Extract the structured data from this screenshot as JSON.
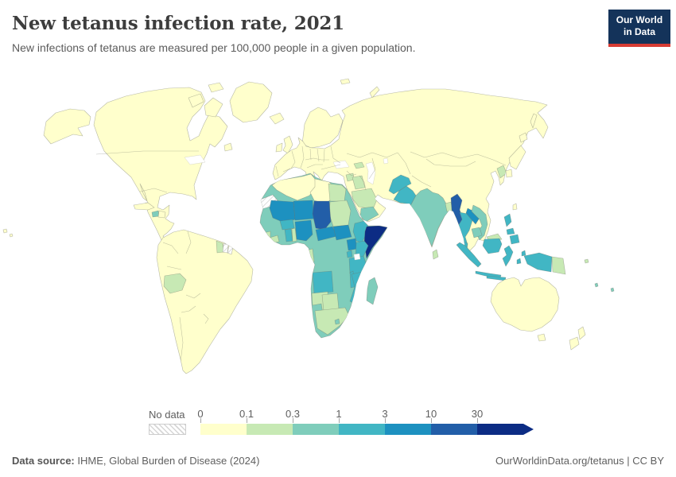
{
  "header": {
    "title": "New tetanus infection rate, 2021",
    "subtitle": "New infections of tetanus are measured per 100,000 people in a given population.",
    "logo_line1": "Our World",
    "logo_line2": "in Data"
  },
  "colors": {
    "logo_navy": "#14335A",
    "logo_red": "#D73C34",
    "ocean": "#ffffff",
    "country_border": "#6f7468"
  },
  "legend": {
    "no_data_label": "No data",
    "ticks": [
      "0",
      "0.1",
      "0.3",
      "1",
      "3",
      "10",
      "30"
    ],
    "bins": [
      {
        "range": "0-0.1",
        "color": "#ffffcc"
      },
      {
        "range": "0.1-0.3",
        "color": "#c7e9b4"
      },
      {
        "range": "0.3-1",
        "color": "#7fcdbb"
      },
      {
        "range": "1-3",
        "color": "#41b6c4"
      },
      {
        "range": "3-10",
        "color": "#1d91c0"
      },
      {
        "range": "10-30",
        "color": "#225ea8"
      },
      {
        "range": "30+",
        "color": "#0c2c84"
      }
    ]
  },
  "map": {
    "type": "choropleth",
    "metric": "new tetanus infections per 100,000 people",
    "year": "2021",
    "countries": {
      "north-america": 0,
      "alaska": 0,
      "greenland": 0,
      "arctic-island": 0,
      "newfoundland": 0,
      "cuba": 0,
      "haiti": 2,
      "dominican-republic": 0,
      "hawaii": 0,
      "south-america": 0,
      "bolivia": 1,
      "guyana": 1,
      "suriname": "nodata",
      "french-guiana": "nodata",
      "iceland": 0,
      "united-kingdom": 0,
      "ireland": 0,
      "scandinavia": 0,
      "svalbard": 0,
      "novaya-zemlya": 0,
      "eurasia": 0,
      "sicily": 0,
      "sardinia": 0,
      "crete": 0,
      "georgia": 1,
      "syria": 1,
      "iraq": 1,
      "saudi-arabia": 1,
      "yemen": 2,
      "afghanistan": 3,
      "pakistan": 3,
      "india": 2,
      "bangladesh": 1,
      "sri-lanka": 1,
      "myanmar": 5,
      "thailand": 3,
      "laos": 4,
      "vietnam": 2,
      "cambodia": 2,
      "malaysia": 3,
      "east-malaysia": 1,
      "north-korea": 1,
      "japan": 0,
      "taiwan": 0,
      "sakhalin": 0,
      "philippines": 3,
      "indonesia": 3,
      "timor-leste": 1,
      "papua-new-guinea": 1,
      "solomon-islands": 1,
      "vanuatu": 2,
      "fiji": 2,
      "australia": 0,
      "tasmania": 0,
      "new-zealand": 0,
      "africa": 2,
      "algeria": 0,
      "libya": 0,
      "western-sahara": "nodata",
      "egypt": 1,
      "sudan": 1,
      "mali": 4,
      "niger": 4,
      "chad": 5,
      "nigeria": 4,
      "burkina-faso": 3,
      "ghana": 3,
      "togo": 1,
      "sierra-leone": 1,
      "liberia": 1,
      "central-african-republic": 4,
      "south-sudan": 4,
      "ethiopia": 3,
      "somalia": 6,
      "uganda": 4,
      "kenya": 3,
      "rwanda": 3,
      "tanzania": 3,
      "angola": 3,
      "malawi": 3,
      "mozambique": 3,
      "gabon": 1,
      "namibia": 1,
      "botswana": 1,
      "south-africa": 1,
      "lesotho": 2,
      "madagascar": 2
    }
  },
  "footer": {
    "source_prefix": "Data source:",
    "source_text": " IHME, Global Burden of Disease (2024)",
    "link_text": "OurWorldinData.org/tetanus",
    "divider": " | ",
    "license_text": "CC BY"
  }
}
